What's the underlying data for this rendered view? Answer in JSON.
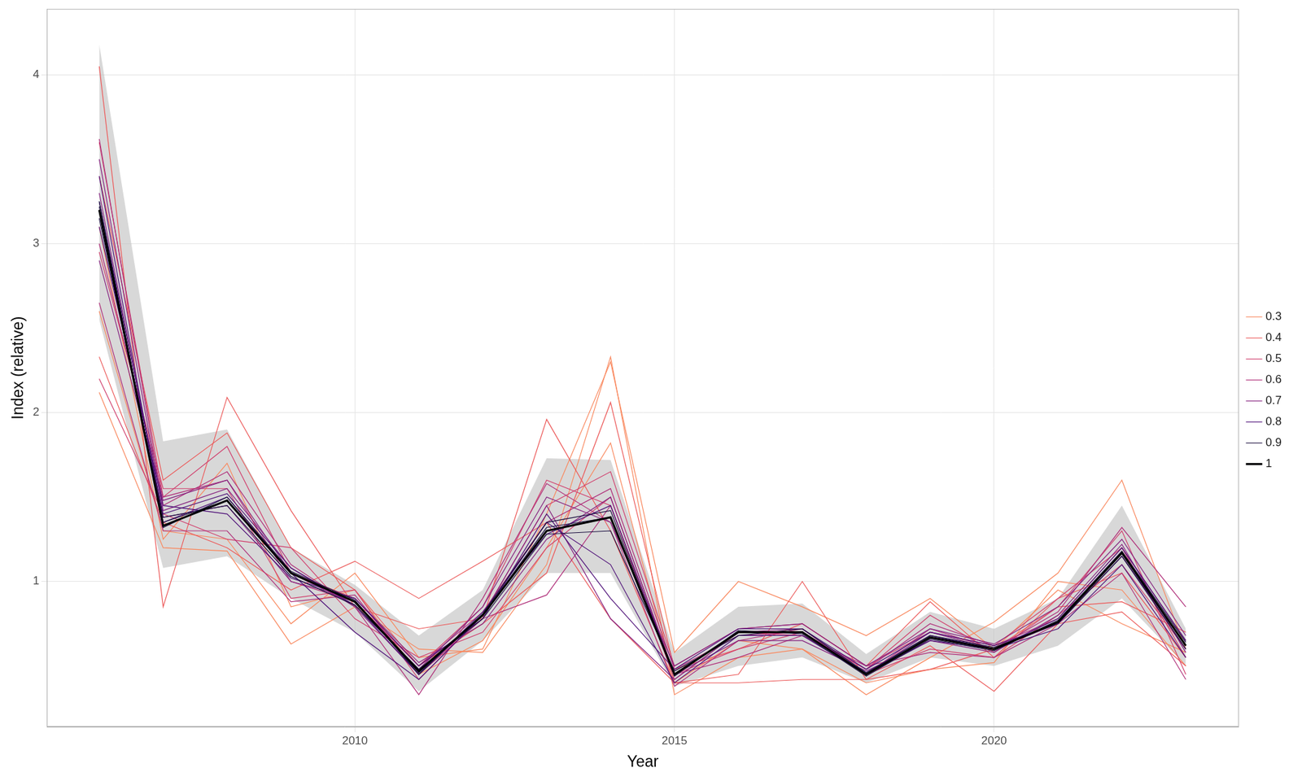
{
  "chart_data": {
    "type": "line",
    "x_label": "Year",
    "y_label": "Index (relative)",
    "x": [
      2006,
      2007,
      2008,
      2009,
      2010,
      2011,
      2012,
      2013,
      2014,
      2015,
      2016,
      2017,
      2018,
      2019,
      2020,
      2021,
      2022,
      2023
    ],
    "xlim": [
      2005.18,
      2023.83
    ],
    "xticks": [
      2010,
      2015,
      2020
    ],
    "ylim": [
      0.14,
      4.39
    ],
    "yticks": [
      1,
      2,
      3,
      4
    ],
    "grid": true,
    "legend": "right",
    "band_lower": [
      2.55,
      1.08,
      1.15,
      0.9,
      0.7,
      0.35,
      0.65,
      1.05,
      1.05,
      0.38,
      0.5,
      0.55,
      0.4,
      0.55,
      0.5,
      0.62,
      0.9,
      0.5
    ],
    "band_upper": [
      4.18,
      1.83,
      1.9,
      1.2,
      0.98,
      0.68,
      0.95,
      1.73,
      1.72,
      0.58,
      0.85,
      0.87,
      0.57,
      0.82,
      0.72,
      0.9,
      1.45,
      0.72
    ],
    "series": [
      {
        "name": "0.3",
        "color": "#f9885e",
        "values": [
          2.12,
          1.2,
          1.18,
          0.63,
          0.85,
          0.6,
          0.58,
          1.1,
          2.33,
          0.33,
          0.55,
          0.6,
          0.33,
          0.55,
          0.76,
          1.05,
          1.6,
          0.6
        ]
      },
      {
        "name": "0.3",
        "color": "#f9885e",
        "values": [
          2.6,
          1.3,
          1.25,
          0.75,
          1.05,
          0.55,
          0.6,
          1.4,
          2.3,
          0.58,
          1.0,
          0.85,
          0.68,
          0.9,
          0.6,
          0.95,
          0.75,
          0.58
        ]
      },
      {
        "name": "0.3",
        "color": "#f9885e",
        "values": [
          3.1,
          1.25,
          1.7,
          0.85,
          0.95,
          0.45,
          0.65,
          1.2,
          1.82,
          0.4,
          0.65,
          0.6,
          0.4,
          0.48,
          0.52,
          1.0,
          0.95,
          0.5
        ]
      },
      {
        "name": "0.4",
        "color": "#ec5a5a",
        "values": [
          4.05,
          0.85,
          2.09,
          1.42,
          0.85,
          0.72,
          0.78,
          1.96,
          1.3,
          0.4,
          0.45,
          1.0,
          0.42,
          0.48,
          0.6,
          0.85,
          0.88,
          0.7
        ]
      },
      {
        "name": "0.4",
        "color": "#ec5a5a",
        "values": [
          2.33,
          1.35,
          1.2,
          0.95,
          1.12,
          0.9,
          1.12,
          1.35,
          0.78,
          0.4,
          0.4,
          0.42,
          0.42,
          0.62,
          0.35,
          0.75,
          0.82,
          0.5
        ]
      },
      {
        "name": "0.4",
        "color": "#ec5a5a",
        "values": [
          3.4,
          1.6,
          1.88,
          1.2,
          0.95,
          0.5,
          0.75,
          1.05,
          2.06,
          0.48,
          0.6,
          0.75,
          0.5,
          0.88,
          0.55,
          0.9,
          1.05,
          0.55
        ]
      },
      {
        "name": "0.5",
        "color": "#d1426f",
        "values": [
          3.6,
          1.5,
          1.8,
          1.05,
          0.9,
          0.5,
          0.85,
          1.6,
          1.45,
          0.42,
          0.7,
          0.68,
          0.48,
          0.8,
          0.58,
          0.85,
          1.3,
          0.45
        ]
      },
      {
        "name": "0.5",
        "color": "#d1426f",
        "values": [
          2.2,
          1.4,
          1.25,
          1.2,
          0.78,
          0.55,
          0.7,
          1.2,
          1.5,
          0.45,
          0.6,
          0.7,
          0.45,
          0.6,
          0.55,
          0.8,
          1.1,
          0.6
        ]
      },
      {
        "name": "0.5",
        "color": "#d1426f",
        "values": [
          2.95,
          1.55,
          1.55,
          0.9,
          0.95,
          0.42,
          0.8,
          1.45,
          1.65,
          0.5,
          0.72,
          0.75,
          0.5,
          0.7,
          0.62,
          0.9,
          1.2,
          0.55
        ]
      },
      {
        "name": "0.6",
        "color": "#b0307a",
        "values": [
          3.62,
          1.45,
          1.65,
          1.1,
          0.85,
          0.33,
          0.9,
          1.58,
          1.35,
          0.38,
          0.65,
          0.72,
          0.45,
          0.72,
          0.6,
          0.82,
          1.32,
          0.85
        ]
      },
      {
        "name": "0.6",
        "color": "#b0307a",
        "values": [
          2.65,
          1.3,
          1.3,
          0.88,
          0.92,
          0.45,
          0.78,
          0.92,
          1.45,
          0.45,
          0.55,
          0.68,
          0.5,
          0.58,
          0.55,
          0.75,
          1.05,
          0.42
        ]
      },
      {
        "name": "0.6",
        "color": "#b0307a",
        "values": [
          3.0,
          1.5,
          1.6,
          1.0,
          0.88,
          0.5,
          0.82,
          1.35,
          1.55,
          0.48,
          0.68,
          0.7,
          0.48,
          0.75,
          0.62,
          0.78,
          1.2,
          0.65
        ]
      },
      {
        "name": "0.7",
        "color": "#862380",
        "values": [
          3.5,
          1.42,
          1.55,
          1.08,
          0.85,
          0.45,
          0.8,
          1.45,
          0.78,
          0.42,
          0.7,
          0.72,
          0.45,
          0.7,
          0.6,
          0.75,
          1.15,
          0.6
        ]
      },
      {
        "name": "0.7",
        "color": "#862380",
        "values": [
          3.3,
          1.38,
          1.45,
          1.0,
          0.9,
          0.52,
          0.75,
          1.25,
          1.5,
          0.45,
          0.65,
          0.65,
          0.47,
          0.65,
          0.58,
          0.8,
          1.22,
          0.58
        ]
      },
      {
        "name": "0.7",
        "color": "#862380",
        "values": [
          2.9,
          1.48,
          1.6,
          1.05,
          0.86,
          0.48,
          0.85,
          1.5,
          1.35,
          0.5,
          0.72,
          0.75,
          0.5,
          0.72,
          0.63,
          0.85,
          1.25,
          0.68
        ]
      },
      {
        "name": "0.8",
        "color": "#4f1179",
        "values": [
          3.4,
          1.35,
          1.5,
          1.05,
          0.7,
          0.42,
          0.8,
          1.35,
          1.1,
          0.4,
          0.68,
          0.68,
          0.45,
          0.65,
          0.6,
          0.72,
          1.1,
          0.55
        ]
      },
      {
        "name": "0.8",
        "color": "#4f1179",
        "values": [
          3.1,
          1.45,
          1.4,
          1.02,
          0.9,
          0.5,
          0.78,
          1.4,
          0.9,
          0.48,
          0.72,
          0.72,
          0.48,
          0.7,
          0.62,
          0.75,
          1.15,
          0.62
        ]
      },
      {
        "name": "0.8",
        "color": "#4f1179",
        "values": [
          3.25,
          1.4,
          1.52,
          1.08,
          0.86,
          0.45,
          0.82,
          1.28,
          1.45,
          0.45,
          0.7,
          0.7,
          0.46,
          0.68,
          0.6,
          0.78,
          1.2,
          0.65
        ]
      },
      {
        "name": "0.9",
        "color": "#1d1141",
        "values": [
          3.22,
          1.35,
          1.48,
          1.05,
          0.88,
          0.46,
          0.8,
          1.32,
          1.38,
          0.45,
          0.7,
          0.7,
          0.45,
          0.67,
          0.6,
          0.76,
          1.17,
          0.62
        ]
      },
      {
        "name": "0.9",
        "color": "#1d1141",
        "values": [
          3.15,
          1.38,
          1.45,
          1.03,
          0.86,
          0.48,
          0.78,
          1.28,
          1.3,
          0.47,
          0.68,
          0.72,
          0.46,
          0.68,
          0.61,
          0.75,
          1.15,
          0.6
        ]
      },
      {
        "name": "0.9",
        "color": "#1d1141",
        "values": [
          3.25,
          1.32,
          1.5,
          1.06,
          0.89,
          0.45,
          0.81,
          1.35,
          1.42,
          0.44,
          0.71,
          0.69,
          0.44,
          0.66,
          0.59,
          0.77,
          1.18,
          0.64
        ]
      },
      {
        "name": "1",
        "color": "#000004",
        "values": [
          3.2,
          1.33,
          1.48,
          1.05,
          0.88,
          0.47,
          0.8,
          1.3,
          1.38,
          0.45,
          0.7,
          0.7,
          0.45,
          0.67,
          0.6,
          0.76,
          1.17,
          0.62
        ]
      }
    ]
  }
}
